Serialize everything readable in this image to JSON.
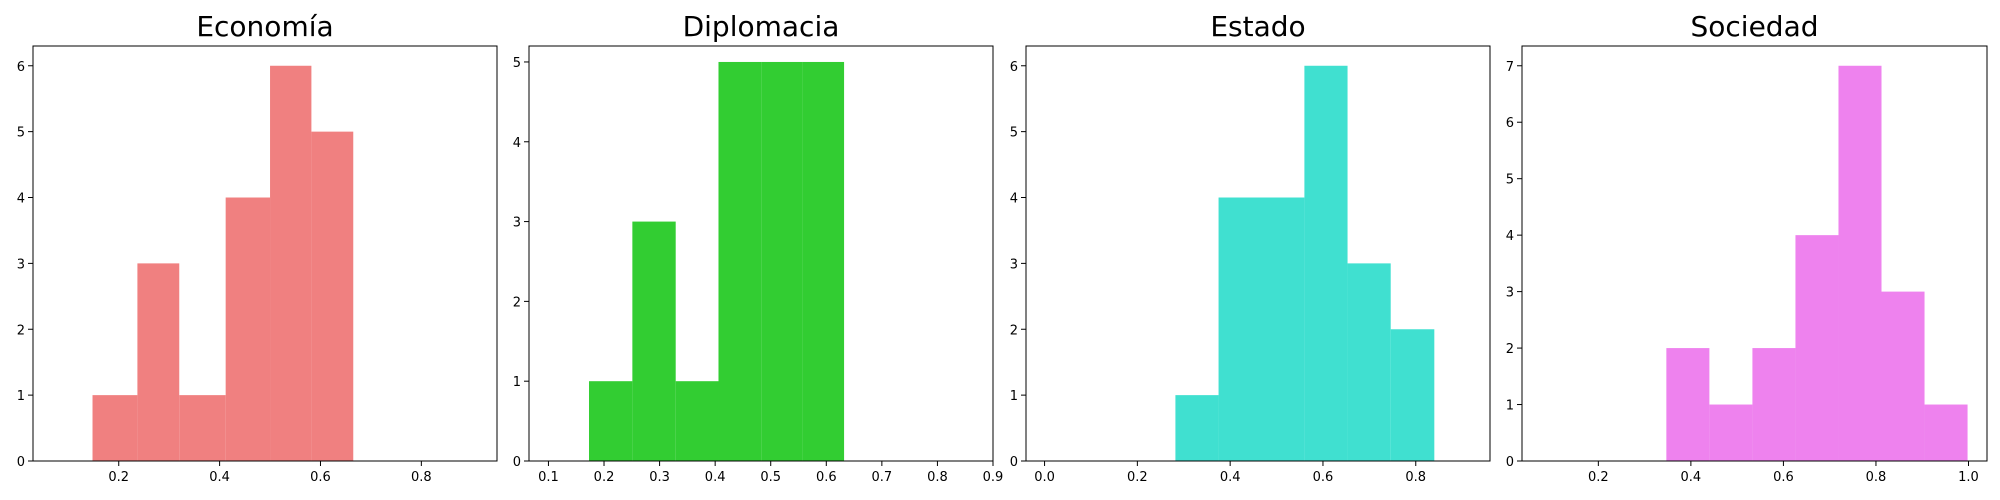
{
  "chart_data": [
    {
      "type": "bar",
      "title": "Economía",
      "color": "#f08080",
      "xlim": [
        0.03,
        0.95
      ],
      "ylim": [
        0,
        6.3
      ],
      "xticks": [
        {
          "v": 0.2,
          "label": "0.2"
        },
        {
          "v": 0.4,
          "label": "0.4"
        },
        {
          "v": 0.6,
          "label": "0.6"
        },
        {
          "v": 0.8,
          "label": "0.8"
        }
      ],
      "yticks": [
        {
          "v": 0,
          "label": "0"
        },
        {
          "v": 1,
          "label": "1"
        },
        {
          "v": 2,
          "label": "2"
        },
        {
          "v": 3,
          "label": "3"
        },
        {
          "v": 4,
          "label": "4"
        },
        {
          "v": 5,
          "label": "5"
        },
        {
          "v": 6,
          "label": "6"
        }
      ],
      "bins": [
        {
          "x0": 0.148,
          "x1": 0.237,
          "value": 1
        },
        {
          "x0": 0.237,
          "x1": 0.32,
          "value": 3
        },
        {
          "x0": 0.32,
          "x1": 0.412,
          "value": 1
        },
        {
          "x0": 0.412,
          "x1": 0.5,
          "value": 4
        },
        {
          "x0": 0.5,
          "x1": 0.582,
          "value": 6
        },
        {
          "x0": 0.582,
          "x1": 0.665,
          "value": 5
        }
      ]
    },
    {
      "type": "bar",
      "title": "Diplomacia",
      "color": "#32cd32",
      "xlim": [
        0.065,
        0.9
      ],
      "ylim": [
        0,
        5.2
      ],
      "xticks": [
        {
          "v": 0.1,
          "label": "0.1"
        },
        {
          "v": 0.2,
          "label": "0.2"
        },
        {
          "v": 0.3,
          "label": "0.3"
        },
        {
          "v": 0.4,
          "label": "0.4"
        },
        {
          "v": 0.5,
          "label": "0.5"
        },
        {
          "v": 0.6,
          "label": "0.6"
        },
        {
          "v": 0.7,
          "label": "0.7"
        },
        {
          "v": 0.8,
          "label": "0.8"
        },
        {
          "v": 0.9,
          "label": "0.9"
        }
      ],
      "yticks": [
        {
          "v": 0,
          "label": "0"
        },
        {
          "v": 1,
          "label": "1"
        },
        {
          "v": 2,
          "label": "2"
        },
        {
          "v": 3,
          "label": "3"
        },
        {
          "v": 4,
          "label": "4"
        },
        {
          "v": 5,
          "label": "5"
        }
      ],
      "bins": [
        {
          "x0": 0.173,
          "x1": 0.251,
          "value": 1
        },
        {
          "x0": 0.251,
          "x1": 0.329,
          "value": 3
        },
        {
          "x0": 0.329,
          "x1": 0.406,
          "value": 1
        },
        {
          "x0": 0.406,
          "x1": 0.484,
          "value": 5
        },
        {
          "x0": 0.484,
          "x1": 0.557,
          "value": 5
        },
        {
          "x0": 0.557,
          "x1": 0.632,
          "value": 5
        }
      ]
    },
    {
      "type": "bar",
      "title": "Estado",
      "color": "#40e0d0",
      "xlim": [
        -0.04,
        0.96
      ],
      "ylim": [
        0,
        6.3
      ],
      "xticks": [
        {
          "v": 0.0,
          "label": "0.0"
        },
        {
          "v": 0.2,
          "label": "0.2"
        },
        {
          "v": 0.4,
          "label": "0.4"
        },
        {
          "v": 0.6,
          "label": "0.6"
        },
        {
          "v": 0.8,
          "label": "0.8"
        }
      ],
      "yticks": [
        {
          "v": 0,
          "label": "0"
        },
        {
          "v": 1,
          "label": "1"
        },
        {
          "v": 2,
          "label": "2"
        },
        {
          "v": 3,
          "label": "3"
        },
        {
          "v": 4,
          "label": "4"
        },
        {
          "v": 5,
          "label": "5"
        },
        {
          "v": 6,
          "label": "6"
        }
      ],
      "bins": [
        {
          "x0": 0.282,
          "x1": 0.375,
          "value": 1
        },
        {
          "x0": 0.375,
          "x1": 0.56,
          "value": 4
        },
        {
          "x0": 0.56,
          "x1": 0.653,
          "value": 6
        },
        {
          "x0": 0.653,
          "x1": 0.746,
          "value": 3
        },
        {
          "x0": 0.746,
          "x1": 0.84,
          "value": 2
        }
      ]
    },
    {
      "type": "bar",
      "title": "Sociedad",
      "color": "#ee82ee",
      "xlim": [
        0.035,
        1.04
      ],
      "ylim": [
        0,
        7.35
      ],
      "xticks": [
        {
          "v": 0.2,
          "label": "0.2"
        },
        {
          "v": 0.4,
          "label": "0.4"
        },
        {
          "v": 0.6,
          "label": "0.6"
        },
        {
          "v": 0.8,
          "label": "0.8"
        },
        {
          "v": 1.0,
          "label": "1.0"
        }
      ],
      "yticks": [
        {
          "v": 0,
          "label": "0"
        },
        {
          "v": 1,
          "label": "1"
        },
        {
          "v": 2,
          "label": "2"
        },
        {
          "v": 3,
          "label": "3"
        },
        {
          "v": 4,
          "label": "4"
        },
        {
          "v": 5,
          "label": "5"
        },
        {
          "v": 6,
          "label": "6"
        },
        {
          "v": 7,
          "label": "7"
        }
      ],
      "bins": [
        {
          "x0": 0.347,
          "x1": 0.44,
          "value": 2
        },
        {
          "x0": 0.44,
          "x1": 0.533,
          "value": 1
        },
        {
          "x0": 0.533,
          "x1": 0.626,
          "value": 2
        },
        {
          "x0": 0.626,
          "x1": 0.719,
          "value": 4
        },
        {
          "x0": 0.719,
          "x1": 0.812,
          "value": 7
        },
        {
          "x0": 0.812,
          "x1": 0.905,
          "value": 3
        },
        {
          "x0": 0.905,
          "x1": 0.998,
          "value": 1
        }
      ]
    }
  ]
}
